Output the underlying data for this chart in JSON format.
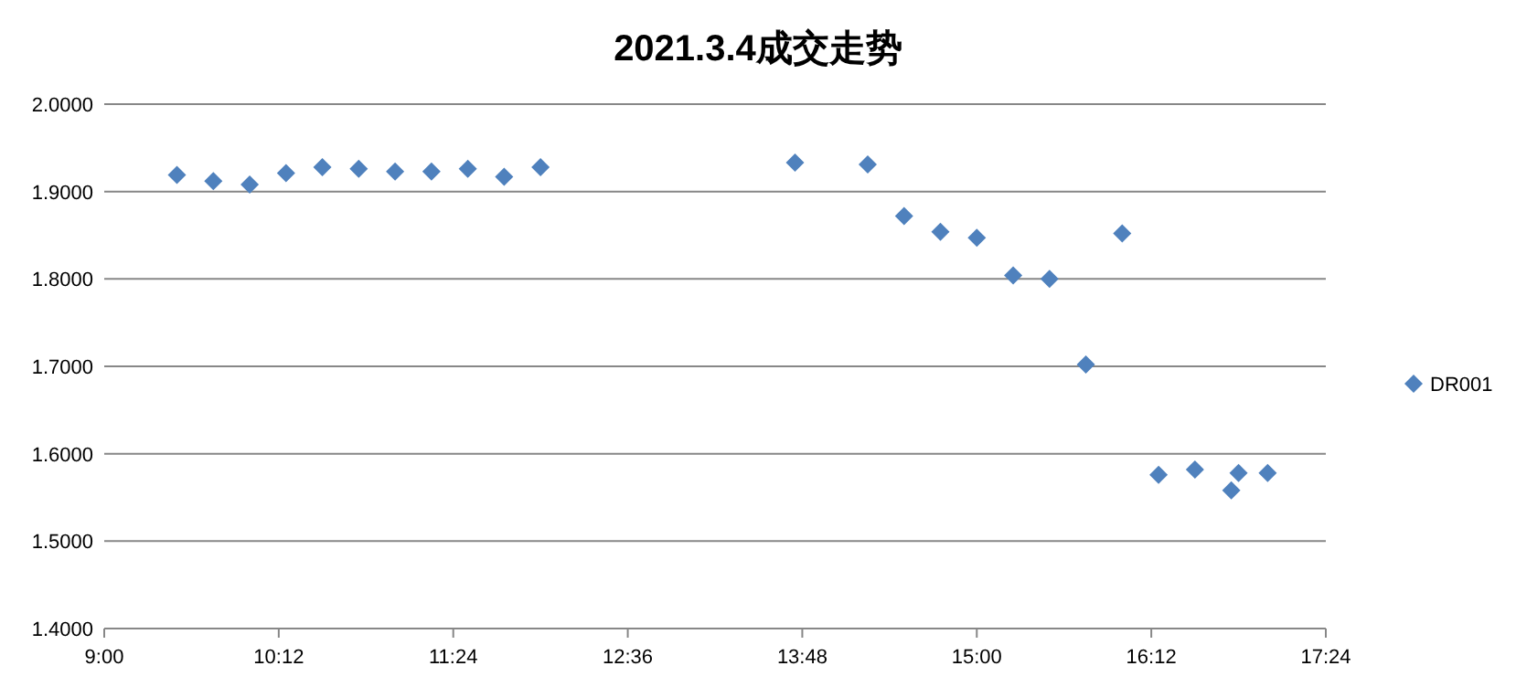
{
  "chart_data": {
    "type": "scatter",
    "title": "2021.3.4成交走势",
    "series": [
      {
        "name": "DR001",
        "color": "#4f81bd",
        "x": [
          9.5,
          9.75,
          10,
          10.25,
          10.5,
          10.75,
          11,
          11.25,
          11.5,
          11.75,
          12,
          13.75,
          14.25,
          14.5,
          14.75,
          15,
          15.25,
          15.5,
          15.75,
          16,
          16.25,
          16.5,
          16.75,
          16.8,
          17
        ],
        "values": [
          1.919,
          1.912,
          1.908,
          1.921,
          1.928,
          1.926,
          1.923,
          1.923,
          1.926,
          1.917,
          1.928,
          1.933,
          1.931,
          1.872,
          1.854,
          1.847,
          1.804,
          1.8,
          1.702,
          1.852,
          1.576,
          1.582,
          1.558,
          1.578,
          1.578
        ]
      }
    ],
    "xlim": [
      9,
      17.4
    ],
    "xticks": [
      {
        "value": 9,
        "label": "9:00"
      },
      {
        "value": 10.2,
        "label": "10:12"
      },
      {
        "value": 11.4,
        "label": "11:24"
      },
      {
        "value": 12.6,
        "label": "12:36"
      },
      {
        "value": 13.8,
        "label": "13:48"
      },
      {
        "value": 15,
        "label": "15:00"
      },
      {
        "value": 16.2,
        "label": "16:12"
      },
      {
        "value": 17.4,
        "label": "17:24"
      }
    ],
    "ylim": [
      1.4,
      2.0
    ],
    "yticks": [
      {
        "value": 1.4,
        "label": "1.4000"
      },
      {
        "value": 1.5,
        "label": "1.5000"
      },
      {
        "value": 1.6,
        "label": "1.6000"
      },
      {
        "value": 1.7,
        "label": "1.7000"
      },
      {
        "value": 1.8,
        "label": "1.8000"
      },
      {
        "value": 1.9,
        "label": "1.9000"
      },
      {
        "value": 2.0,
        "label": "2.0000"
      }
    ],
    "grid": "y",
    "legend": "right",
    "marker": "diamond"
  }
}
